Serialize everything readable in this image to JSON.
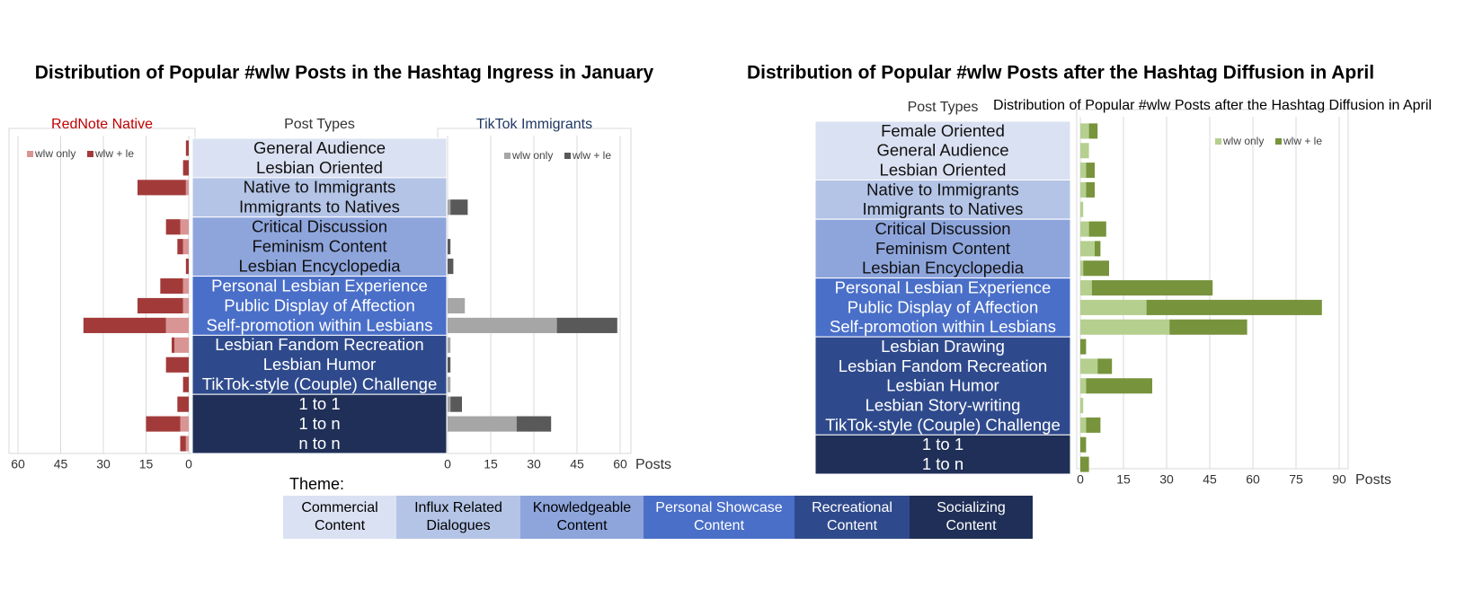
{
  "chart_data": [
    {
      "type": "bar",
      "title": "Distribution of Popular #wlw Posts in the Hashtag Ingress in January",
      "category_title": "Post Types",
      "category_groups": [
        [
          "General Audience",
          "Lesbian Oriented"
        ],
        [
          "Native to Immigrants",
          "Immigrants to Natives"
        ],
        [
          "Critical Discussion",
          "Feminism Content",
          "Lesbian Encyclopedia"
        ],
        [
          "Personal Lesbian Experience",
          "Public Display of Affection",
          "Self-promotion within Lesbians"
        ],
        [
          "Lesbian Fandom Recreation",
          "Lesbian Humor",
          "TikTok-style (Couple) Challenge"
        ],
        [
          "1 to 1",
          "1 to n",
          "n to n"
        ]
      ],
      "panels": [
        {
          "title": "RedNote Native",
          "title_color": "#c00000",
          "reversed": true,
          "grid": true,
          "xlim": [
            0,
            60
          ],
          "xticks": [
            60,
            45,
            30,
            15,
            0
          ],
          "series": [
            {
              "name": "wlw only",
              "color": "#d99594",
              "values": [
                0,
                0,
                1,
                0,
                3,
                2,
                0,
                2,
                2,
                8,
                5,
                0,
                0,
                0,
                3,
                1
              ]
            },
            {
              "name": "wlw + le",
              "color": "#a33a3a",
              "values": [
                1,
                2,
                17,
                0,
                5,
                2,
                1,
                8,
                16,
                29,
                1,
                8,
                2,
                4,
                12,
                2
              ]
            }
          ]
        },
        {
          "title": "TikTok Immigrants",
          "title_color": "#1f3864",
          "reversed": false,
          "grid": true,
          "xlim": [
            0,
            60
          ],
          "xticks": [
            0,
            15,
            30,
            45,
            60
          ],
          "x_label": "Posts",
          "series": [
            {
              "name": "wlw only",
              "color": "#a6a6a6",
              "values": [
                0,
                0,
                0,
                1,
                0,
                0,
                0,
                0,
                6,
                38,
                1,
                0,
                1,
                1,
                24,
                0
              ]
            },
            {
              "name": "wlw + le",
              "color": "#595959",
              "values": [
                0,
                0,
                0,
                6,
                0,
                1,
                2,
                0,
                0,
                21,
                0,
                1,
                0,
                4,
                12,
                0
              ]
            }
          ]
        }
      ]
    },
    {
      "type": "bar",
      "title": "Distribution of Popular #wlw Posts after the Hashtag Diffusion in April",
      "category_title": "Post Types",
      "category_groups": [
        [
          "Female Oriented",
          "General Audience",
          "Lesbian Oriented"
        ],
        [
          "Native to Immigrants",
          "Immigrants to Natives"
        ],
        [
          "Critical Discussion",
          "Feminism Content",
          "Lesbian Encyclopedia"
        ],
        [
          "Personal Lesbian Experience",
          "Public Display of Affection",
          "Self-promotion within Lesbians"
        ],
        [
          "Lesbian Drawing",
          "Lesbian Fandom Recreation",
          "Lesbian Humor",
          "Lesbian Story-writing",
          "TikTok-style (Couple) Challenge"
        ],
        [
          "1 to 1",
          "1 to n"
        ]
      ],
      "grid": true,
      "xlim": [
        0,
        90
      ],
      "xticks": [
        0,
        15,
        30,
        45,
        60,
        75,
        90
      ],
      "x_label": "Posts",
      "series": [
        {
          "name": "wlw only",
          "color": "#b5cf8f",
          "values": [
            3,
            3,
            2,
            2,
            1,
            3,
            5,
            1,
            4,
            23,
            31,
            0,
            6,
            2,
            1,
            2,
            0,
            0
          ]
        },
        {
          "name": "wlw + le",
          "color": "#77933c",
          "values": [
            3,
            0,
            3,
            3,
            0,
            6,
            2,
            9,
            42,
            61,
            27,
            2,
            5,
            23,
            0,
            5,
            2,
            3
          ]
        }
      ]
    }
  ],
  "theme_legend": {
    "title": "Theme:",
    "themes": [
      {
        "name": "Commercial Content",
        "color": "#dae1f2"
      },
      {
        "name": "Influx Related Dialogues",
        "color": "#b4c4e6"
      },
      {
        "name": "Knowledgeable Content",
        "color": "#8ea5dc"
      },
      {
        "name": "Personal Showcase Content",
        "color": "#4a6fc8"
      },
      {
        "name": "Recreational Content",
        "color": "#2f4a8c"
      },
      {
        "name": "Socializing Content",
        "color": "#1f2f57"
      }
    ]
  }
}
